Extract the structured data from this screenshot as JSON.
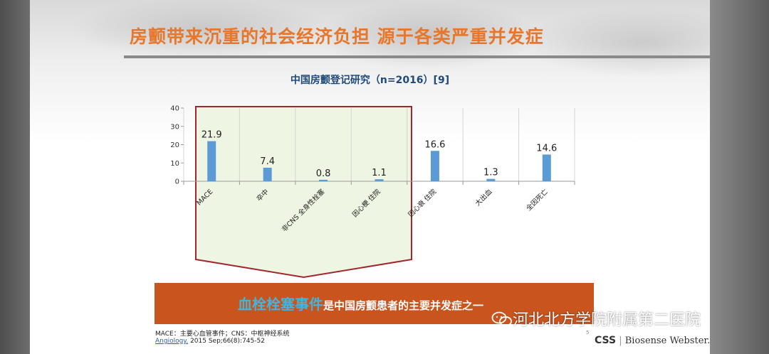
{
  "slide": {
    "title": "房颤带来沉重的社会经济负担 源于各类严重并发症",
    "footnote": "MACE：主要心血管事件；CNS：中枢神经系统",
    "citation_journal": "Angiology.",
    "citation_detail": " 2015 Sep;66(8):745-52",
    "page_number": "5",
    "logo_css": "CSS",
    "logo_bw": "Biosense Webster.",
    "watermark": "河北北方学院附属第二医院"
  },
  "banner": {
    "highlight": "血栓栓塞事件",
    "text": "是中国房颤患者的主要并发症之一",
    "bg_color": "#c9541e",
    "highlight_color": "#3fb5e0"
  },
  "chart_data": {
    "type": "bar",
    "title": "中国房颤登记研究（n=2016）[9]",
    "categories": [
      "MACE",
      "卒中",
      "非CNS 全身性栓塞",
      "因心梗 住院",
      "因心衰 住院",
      "大出血",
      "全因死亡"
    ],
    "values": [
      21.9,
      7.4,
      0.8,
      1.1,
      16.6,
      1.3,
      14.6
    ],
    "value_labels": [
      "21.9",
      "7.4",
      "0.8",
      "1.1",
      "16.6",
      "1.3",
      "14.6"
    ],
    "yticks": [
      0,
      10,
      20,
      30,
      40
    ],
    "ylim": [
      0,
      40
    ],
    "bar_color": "#5b9bd5",
    "highlight_categories": [
      0,
      1,
      2,
      3
    ],
    "highlight_fill": "#eef5e2",
    "highlight_stroke": "#a0282d",
    "grid": "vertical"
  }
}
